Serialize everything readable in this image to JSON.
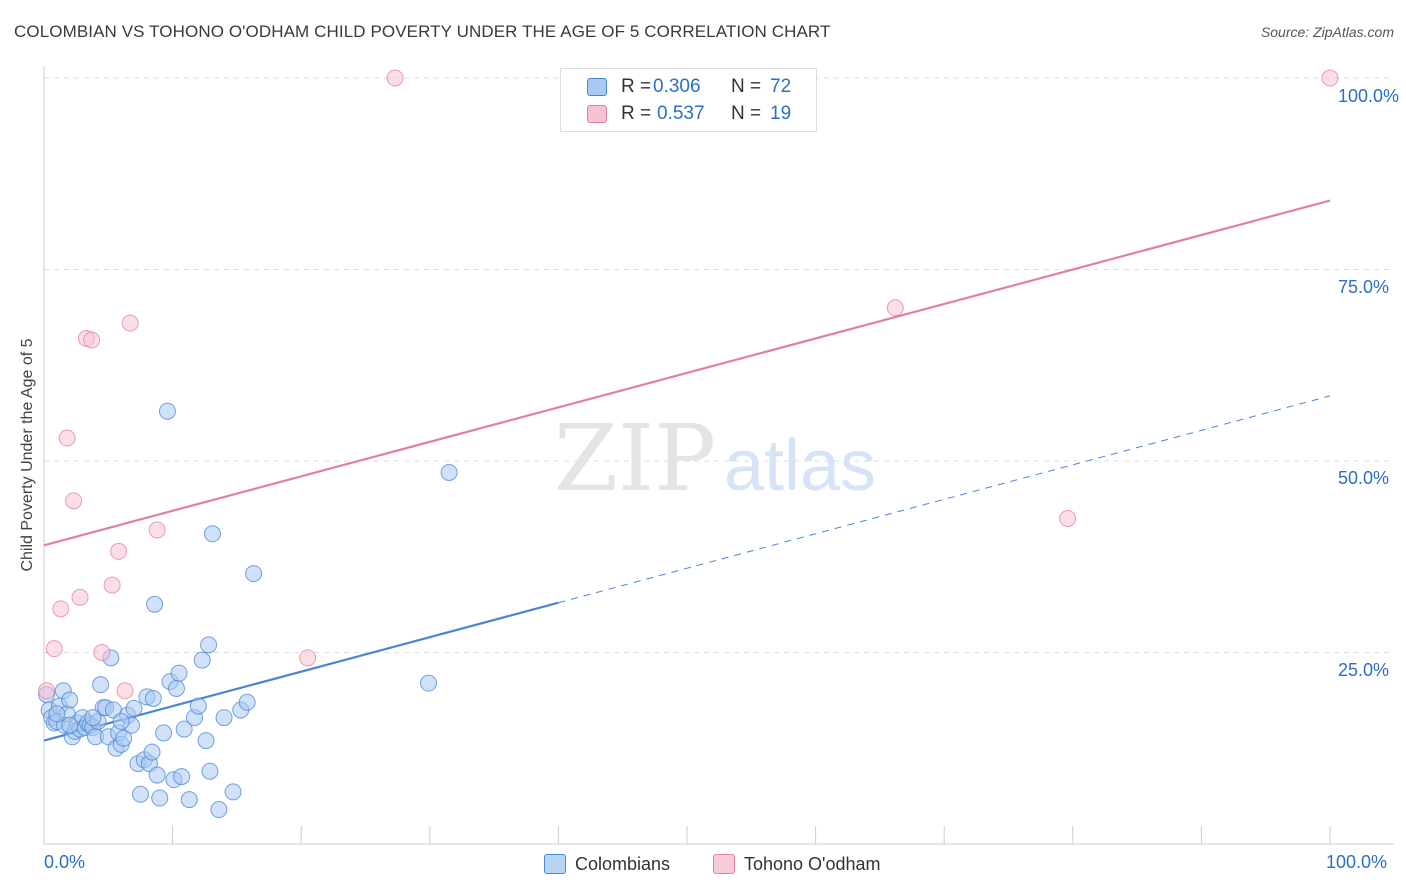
{
  "title": "COLOMBIAN VS TOHONO O'ODHAM CHILD POVERTY UNDER THE AGE OF 5 CORRELATION CHART",
  "source": "Source: ZipAtlas.com",
  "watermark": {
    "zip": "ZIP",
    "atlas": "atlas"
  },
  "legend": {
    "r_label": "R =",
    "n_label": "N =",
    "rows": [
      {
        "r": "0.306",
        "n": "72",
        "color": "#a9c9f2",
        "border": "#4a86d6"
      },
      {
        "r": "0.537",
        "n": "19",
        "color": "#f7c2d1",
        "border": "#e0809f"
      }
    ]
  },
  "bottom_legend": [
    {
      "label": "Colombians",
      "color": "#b8d3f4",
      "border": "#4a86d6"
    },
    {
      "label": "Tohono O'odham",
      "color": "#f8cbd8",
      "border": "#e0809f"
    }
  ],
  "chart_data": {
    "type": "scatter",
    "title": "COLOMBIAN VS TOHONO O'ODHAM CHILD POVERTY UNDER THE AGE OF 5 CORRELATION CHART",
    "xlabel": "",
    "ylabel": "Child Poverty Under the Age of 5",
    "xlim": [
      0,
      100
    ],
    "ylim": [
      0,
      100
    ],
    "x_tick_labels": [
      "0.0%",
      "100.0%"
    ],
    "y_tick_labels": [
      "25.0%",
      "50.0%",
      "75.0%",
      "100.0%"
    ],
    "y_ticks": [
      25,
      50,
      75,
      100
    ],
    "series": [
      {
        "name": "Colombians",
        "color": "#4a86d6",
        "fill": "#a9c9f2",
        "r": 0.306,
        "n": 72,
        "trend": {
          "x0": 0,
          "y0": 13.5,
          "x1": 40,
          "y1": 31.5,
          "dash_to_x": 100,
          "dash_to_y": 58.5
        },
        "points": [
          [
            0.2,
            19.5
          ],
          [
            0.4,
            17.5
          ],
          [
            0.6,
            16.5
          ],
          [
            0.8,
            15.8
          ],
          [
            1.0,
            16.0
          ],
          [
            1.2,
            18.0
          ],
          [
            1.5,
            20.0
          ],
          [
            1.6,
            15.5
          ],
          [
            1.8,
            17.0
          ],
          [
            2.0,
            18.8
          ],
          [
            2.2,
            14.0
          ],
          [
            2.4,
            14.7
          ],
          [
            2.6,
            15.8
          ],
          [
            2.8,
            15.0
          ],
          [
            3.0,
            16.5
          ],
          [
            3.2,
            15.2
          ],
          [
            3.4,
            15.8
          ],
          [
            3.6,
            15.5
          ],
          [
            3.8,
            15.2
          ],
          [
            4.0,
            14.0
          ],
          [
            4.2,
            16.0
          ],
          [
            4.4,
            20.8
          ],
          [
            4.6,
            17.8
          ],
          [
            4.8,
            17.8
          ],
          [
            5.0,
            14.0
          ],
          [
            5.2,
            24.3
          ],
          [
            5.4,
            17.5
          ],
          [
            5.6,
            12.5
          ],
          [
            5.8,
            14.5
          ],
          [
            6.0,
            13.0
          ],
          [
            6.2,
            13.8
          ],
          [
            6.5,
            16.8
          ],
          [
            6.8,
            15.5
          ],
          [
            7.0,
            17.7
          ],
          [
            7.3,
            10.5
          ],
          [
            7.5,
            6.5
          ],
          [
            7.8,
            11.0
          ],
          [
            8.0,
            19.2
          ],
          [
            8.2,
            10.5
          ],
          [
            8.4,
            12.0
          ],
          [
            8.5,
            19.0
          ],
          [
            8.6,
            31.3
          ],
          [
            8.8,
            9.0
          ],
          [
            9.0,
            6.0
          ],
          [
            9.3,
            14.5
          ],
          [
            9.6,
            56.5
          ],
          [
            9.8,
            21.2
          ],
          [
            10.1,
            8.4
          ],
          [
            10.3,
            20.3
          ],
          [
            10.5,
            22.3
          ],
          [
            10.7,
            8.8
          ],
          [
            10.9,
            15.0
          ],
          [
            11.3,
            5.8
          ],
          [
            11.7,
            16.5
          ],
          [
            12.0,
            18.0
          ],
          [
            12.3,
            24.0
          ],
          [
            12.6,
            13.5
          ],
          [
            12.8,
            26.0
          ],
          [
            12.9,
            9.5
          ],
          [
            13.1,
            40.5
          ],
          [
            13.6,
            4.5
          ],
          [
            14.0,
            16.5
          ],
          [
            14.7,
            6.8
          ],
          [
            15.3,
            17.5
          ],
          [
            15.8,
            18.5
          ],
          [
            16.3,
            35.3
          ],
          [
            29.9,
            21.0
          ],
          [
            31.5,
            48.5
          ],
          [
            2.0,
            15.5
          ],
          [
            6.0,
            16.0
          ],
          [
            3.8,
            16.5
          ],
          [
            1.0,
            17.0
          ]
        ]
      },
      {
        "name": "Tohono O'odham",
        "color": "#e0809f",
        "fill": "#f7c2d1",
        "r": 0.537,
        "n": 19,
        "trend": {
          "x0": 0,
          "y0": 39.0,
          "x1": 100,
          "y1": 84.0
        },
        "points": [
          [
            0.2,
            20.0
          ],
          [
            0.8,
            25.5
          ],
          [
            1.3,
            30.7
          ],
          [
            1.8,
            53.0
          ],
          [
            2.3,
            44.8
          ],
          [
            2.8,
            32.2
          ],
          [
            3.3,
            66.0
          ],
          [
            3.7,
            65.8
          ],
          [
            4.5,
            25.0
          ],
          [
            5.3,
            33.8
          ],
          [
            5.8,
            38.2
          ],
          [
            6.3,
            20.0
          ],
          [
            6.7,
            68.0
          ],
          [
            8.8,
            41.0
          ],
          [
            20.5,
            24.3
          ],
          [
            27.3,
            100.0
          ],
          [
            66.2,
            70.0
          ],
          [
            79.6,
            42.5
          ],
          [
            100.0,
            100.0
          ]
        ]
      }
    ]
  }
}
